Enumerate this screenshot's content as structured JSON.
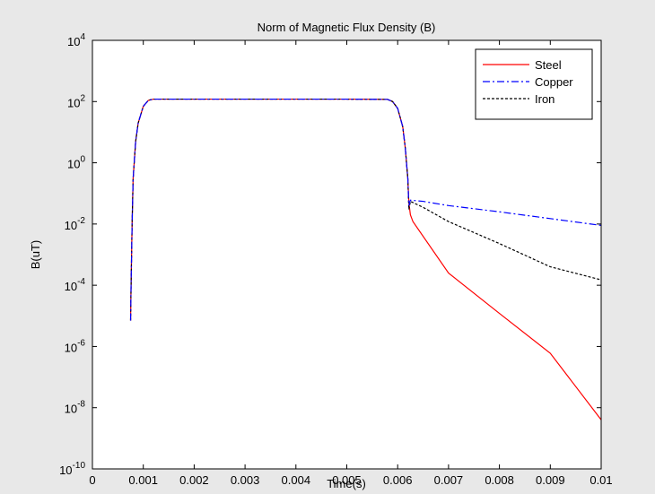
{
  "chart_data": {
    "type": "line",
    "title": "Norm of Magnetic Flux Density (B)",
    "xlabel": "Time(s)",
    "ylabel": "B(uT)",
    "xlim": [
      0,
      0.01
    ],
    "ylim": [
      1e-10,
      10000
    ],
    "yscale": "log",
    "grid": false,
    "legend_position": "top-right",
    "x_ticks": [
      {
        "value": 0,
        "label": "0"
      },
      {
        "value": 0.001,
        "label": "0.001"
      },
      {
        "value": 0.002,
        "label": "0.002"
      },
      {
        "value": 0.003,
        "label": "0.003"
      },
      {
        "value": 0.004,
        "label": "0.004"
      },
      {
        "value": 0.005,
        "label": "0.005"
      },
      {
        "value": 0.006,
        "label": "0.006"
      },
      {
        "value": 0.007,
        "label": "0.007"
      },
      {
        "value": 0.008,
        "label": "0.008"
      },
      {
        "value": 0.009,
        "label": "0.009"
      },
      {
        "value": 0.01,
        "label": "0.01"
      }
    ],
    "y_ticks": [
      {
        "exp": 4,
        "base": "10",
        "sup": "4"
      },
      {
        "exp": 2,
        "base": "10",
        "sup": "2"
      },
      {
        "exp": 0,
        "base": "10",
        "sup": "0"
      },
      {
        "exp": -2,
        "base": "10",
        "sup": "-2"
      },
      {
        "exp": -4,
        "base": "10",
        "sup": "-4"
      },
      {
        "exp": -6,
        "base": "10",
        "sup": "-6"
      },
      {
        "exp": -8,
        "base": "10",
        "sup": "-8"
      },
      {
        "exp": -10,
        "base": "10",
        "sup": "-10"
      }
    ],
    "series": [
      {
        "name": "Steel",
        "color": "#ff0000",
        "dash": "solid",
        "points": [
          [
            0.00075,
            7e-06
          ],
          [
            0.00076,
            0.0001
          ],
          [
            0.00078,
            0.01
          ],
          [
            0.0008,
            0.3
          ],
          [
            0.00085,
            5
          ],
          [
            0.0009,
            20
          ],
          [
            0.001,
            70
          ],
          [
            0.0011,
            110
          ],
          [
            0.0012,
            120
          ],
          [
            0.002,
            120
          ],
          [
            0.005,
            120
          ],
          [
            0.0058,
            118
          ],
          [
            0.0059,
            100
          ],
          [
            0.006,
            60
          ],
          [
            0.0061,
            15
          ],
          [
            0.00615,
            3
          ],
          [
            0.0062,
            0.3
          ],
          [
            0.00622,
            0.05
          ],
          [
            0.00625,
            0.02
          ],
          [
            0.0063,
            0.012
          ],
          [
            0.007,
            0.00025
          ],
          [
            0.008,
            1.2e-05
          ],
          [
            0.009,
            6e-07
          ],
          [
            0.01,
            4e-09
          ]
        ]
      },
      {
        "name": "Copper",
        "color": "#0000ff",
        "dash": "dashdot",
        "points": [
          [
            0.00075,
            7e-06
          ],
          [
            0.00076,
            0.0001
          ],
          [
            0.00078,
            0.01
          ],
          [
            0.0008,
            0.3
          ],
          [
            0.00085,
            5
          ],
          [
            0.0009,
            20
          ],
          [
            0.001,
            70
          ],
          [
            0.0011,
            110
          ],
          [
            0.0012,
            120
          ],
          [
            0.002,
            120
          ],
          [
            0.005,
            120
          ],
          [
            0.0058,
            118
          ],
          [
            0.0059,
            100
          ],
          [
            0.006,
            60
          ],
          [
            0.0061,
            15
          ],
          [
            0.00615,
            3
          ],
          [
            0.0062,
            0.3
          ],
          [
            0.00622,
            0.04
          ],
          [
            0.00625,
            0.06
          ],
          [
            0.0065,
            0.055
          ],
          [
            0.007,
            0.04
          ],
          [
            0.008,
            0.025
          ],
          [
            0.009,
            0.015
          ],
          [
            0.01,
            0.009
          ]
        ]
      },
      {
        "name": "Iron",
        "color": "#000000",
        "dash": "dotted",
        "points": [
          [
            0.00075,
            7e-06
          ],
          [
            0.00076,
            0.0001
          ],
          [
            0.00078,
            0.01
          ],
          [
            0.0008,
            0.3
          ],
          [
            0.00085,
            5
          ],
          [
            0.0009,
            20
          ],
          [
            0.001,
            70
          ],
          [
            0.0011,
            110
          ],
          [
            0.0012,
            120
          ],
          [
            0.002,
            120
          ],
          [
            0.005,
            120
          ],
          [
            0.0058,
            118
          ],
          [
            0.0059,
            100
          ],
          [
            0.006,
            60
          ],
          [
            0.0061,
            15
          ],
          [
            0.00615,
            3
          ],
          [
            0.0062,
            0.3
          ],
          [
            0.00622,
            0.03
          ],
          [
            0.00625,
            0.055
          ],
          [
            0.0065,
            0.035
          ],
          [
            0.007,
            0.012
          ],
          [
            0.008,
            0.0023
          ],
          [
            0.009,
            0.0004
          ],
          [
            0.01,
            0.00015
          ]
        ]
      }
    ]
  }
}
